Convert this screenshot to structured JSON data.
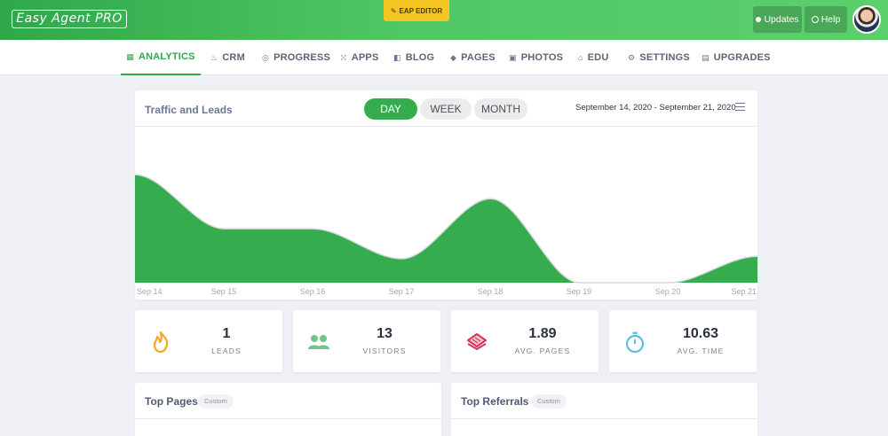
{
  "header": {
    "logo_text": "Easy Agent PRO",
    "editor_label": "EAP EDITOR",
    "updates_label": "Updates",
    "help_label": "Help"
  },
  "nav": {
    "items": [
      {
        "label": "ANALYTICS",
        "icon": "grid-icon"
      },
      {
        "label": "CRM",
        "icon": "flame-icon"
      },
      {
        "label": "PROGRESS",
        "icon": "progress-icon"
      },
      {
        "label": "APPS",
        "icon": "apps-icon"
      },
      {
        "label": "BLOG",
        "icon": "blog-icon"
      },
      {
        "label": "PAGES",
        "icon": "layers-icon"
      },
      {
        "label": "PHOTOS",
        "icon": "photo-icon"
      },
      {
        "label": "EDU",
        "icon": "edu-icon"
      },
      {
        "label": "SETTINGS",
        "icon": "gear-icon"
      },
      {
        "label": "UPGRADES",
        "icon": "store-icon"
      }
    ],
    "active": "ANALYTICS"
  },
  "traffic": {
    "title": "Traffic and Leads",
    "ranges": [
      "DAY",
      "WEEK",
      "MONTH"
    ],
    "selected_range": "DAY",
    "date_range": "September 14, 2020 - September 21, 2020"
  },
  "chart_data": {
    "type": "area",
    "categories": [
      "Sep 14",
      "Sep 15",
      "Sep 16",
      "Sep 17",
      "Sep 18",
      "Sep 19",
      "Sep 20",
      "Sep 21"
    ],
    "values": [
      9,
      4.5,
      4.5,
      2,
      7,
      0,
      0,
      2.2
    ],
    "ylim": [
      0,
      13
    ],
    "color": "#35ad4f",
    "grid": false
  },
  "stats": [
    {
      "value": "1",
      "label": "LEADS",
      "icon": "flame-icon",
      "color": "#f5a623"
    },
    {
      "value": "13",
      "label": "VISITORS",
      "icon": "users-icon",
      "color": "#6fc48a"
    },
    {
      "value": "1.89",
      "label": "AVG. PAGES",
      "icon": "pages-stack-icon",
      "color": "#d2345a"
    },
    {
      "value": "10.63",
      "label": "AVG. TIME",
      "icon": "stopwatch-icon",
      "color": "#5bc0de"
    }
  ],
  "panels": [
    {
      "title": "Top Pages",
      "badge": "Custom"
    },
    {
      "title": "Top Referrals",
      "badge": "Custom"
    }
  ]
}
